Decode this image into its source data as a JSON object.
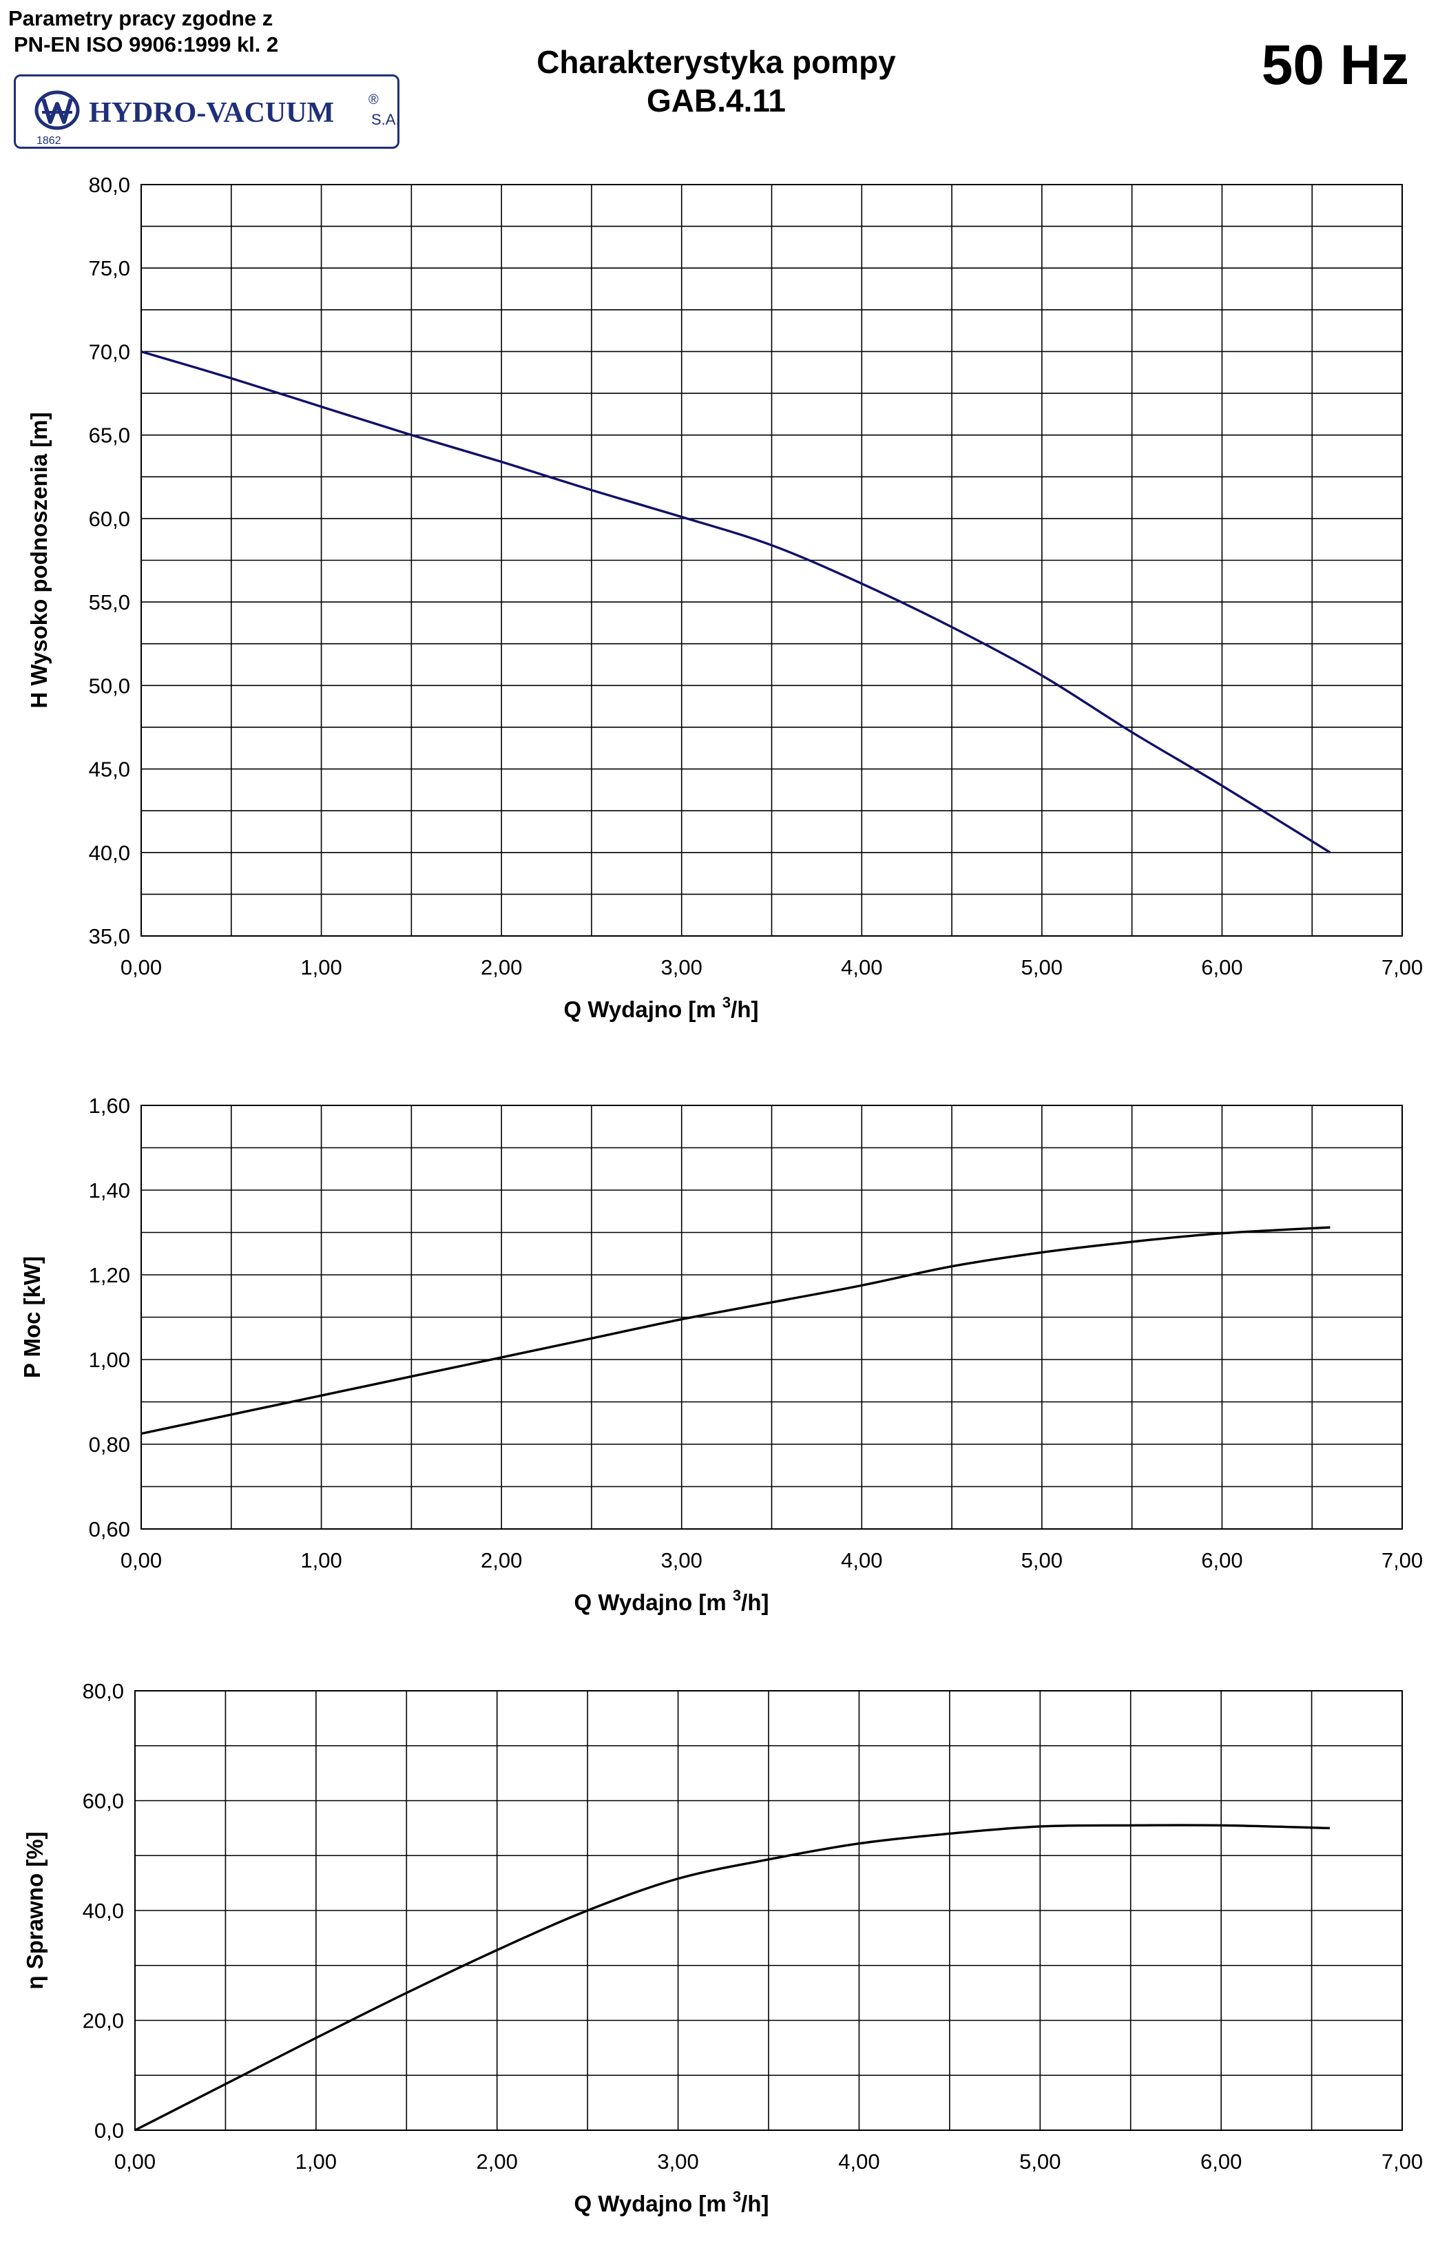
{
  "header": {
    "note_line1": "Parametry pracy zgodne z",
    "note_line2": "PN-EN ISO 9906:1999 kl. 2",
    "logo_text": "HYDRO-VACUUM",
    "logo_registered": "®",
    "logo_suffix": "S.A.",
    "logo_year": "1862",
    "title_line1": "Charakterystyka pompy",
    "title_line2": "GAB.4.11",
    "frequency": "50 Hz"
  },
  "colors": {
    "logo": "#1f2f7a",
    "head_curve": "#10106a",
    "curve": "#000000",
    "grid": "#000000"
  },
  "chart_data": [
    {
      "type": "line",
      "xlabel": "Q  Wydajno [m",
      "xlabel_sup": "3",
      "xlabel_tail": "/h]",
      "ylabel": "H  Wysoko podnoszenia [m]",
      "xlim": [
        0,
        7
      ],
      "ylim": [
        35,
        80
      ],
      "x_ticks": [
        "0,00",
        "1,00",
        "2,00",
        "3,00",
        "4,00",
        "5,00",
        "6,00",
        "7,00"
      ],
      "y_ticks": [
        "35,0",
        "40,0",
        "45,0",
        "50,0",
        "55,0",
        "60,0",
        "65,0",
        "70,0",
        "75,0",
        "80,0"
      ],
      "grid": true,
      "series": [
        {
          "x": [
            0,
            0.5,
            1.0,
            1.5,
            2.0,
            2.5,
            3.0,
            3.5,
            4.0,
            4.5,
            5.0,
            5.5,
            6.0,
            6.6
          ],
          "y": [
            70.0,
            68.4,
            66.7,
            65.0,
            63.4,
            61.7,
            60.1,
            58.4,
            56.1,
            53.5,
            50.6,
            47.2,
            44.0,
            40.0
          ]
        }
      ]
    },
    {
      "type": "line",
      "xlabel": "Q  Wydajno [m",
      "xlabel_sup": "3",
      "xlabel_tail": "/h]",
      "ylabel": "P  Moc [kW]",
      "xlim": [
        0,
        7
      ],
      "ylim": [
        0.6,
        1.6
      ],
      "x_ticks": [
        "0,00",
        "1,00",
        "2,00",
        "3,00",
        "4,00",
        "5,00",
        "6,00",
        "7,00"
      ],
      "y_ticks": [
        "0,60",
        "0,80",
        "1,00",
        "1,20",
        "1,40",
        "1,60"
      ],
      "grid": true,
      "series": [
        {
          "x": [
            0,
            0.5,
            1.0,
            1.5,
            2.0,
            2.5,
            3.0,
            3.5,
            4.0,
            4.5,
            5.0,
            5.5,
            6.0,
            6.6
          ],
          "y": [
            0.825,
            0.87,
            0.915,
            0.96,
            1.005,
            1.05,
            1.095,
            1.135,
            1.175,
            1.22,
            1.253,
            1.278,
            1.298,
            1.312
          ]
        }
      ]
    },
    {
      "type": "line",
      "xlabel": "Q  Wydajno [m",
      "xlabel_sup": "3",
      "xlabel_tail": "/h]",
      "ylabel": "η  Sprawno [%]",
      "xlim": [
        0,
        7
      ],
      "ylim": [
        0,
        80
      ],
      "x_ticks": [
        "0,00",
        "1,00",
        "2,00",
        "3,00",
        "4,00",
        "5,00",
        "6,00",
        "7,00"
      ],
      "y_ticks": [
        "0,0",
        "20,0",
        "40,0",
        "60,0",
        "80,0"
      ],
      "grid": true,
      "series": [
        {
          "x": [
            0,
            0.5,
            1.0,
            1.5,
            2.0,
            2.5,
            3.0,
            3.5,
            4.0,
            4.5,
            5.0,
            5.5,
            6.0,
            6.6
          ],
          "y": [
            0,
            8.4,
            16.8,
            25.0,
            32.8,
            40.0,
            45.8,
            49.3,
            52.2,
            54.0,
            55.3,
            55.5,
            55.5,
            55.0
          ]
        }
      ]
    }
  ]
}
